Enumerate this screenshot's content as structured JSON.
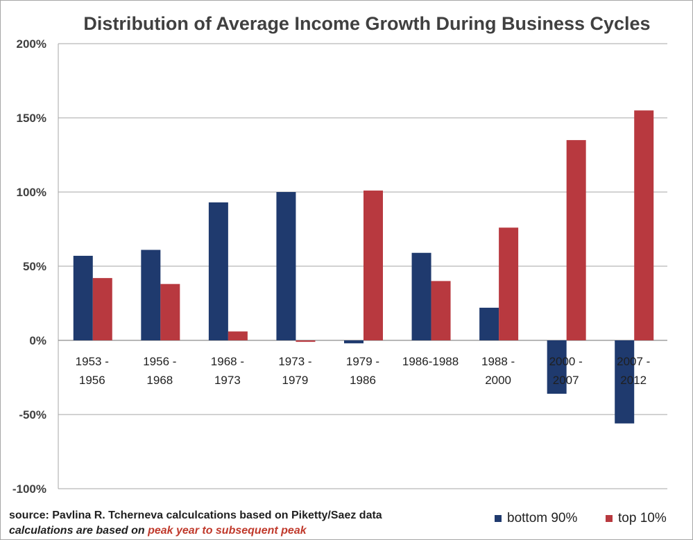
{
  "chart_data": {
    "type": "bar",
    "title": "Distribution of Average Income Growth During Business Cycles",
    "categories": [
      [
        "1953 -",
        "1956"
      ],
      [
        "1956 -",
        "1968"
      ],
      [
        "1968 -",
        "1973"
      ],
      [
        "1973 -",
        "1979"
      ],
      [
        "1979 -",
        "1986"
      ],
      [
        "1986-1988"
      ],
      [
        "1988 -",
        "2000"
      ],
      [
        "2000 -",
        "2007"
      ],
      [
        "2007 -",
        "2012"
      ]
    ],
    "series": [
      {
        "name": "bottom 90%",
        "color": "#1f3a6e",
        "values": [
          57,
          61,
          93,
          100,
          -2,
          59,
          22,
          -36,
          -56
        ]
      },
      {
        "name": "top 10%",
        "color": "#b8393f",
        "values": [
          42,
          38,
          6,
          -1,
          101,
          40,
          76,
          135,
          155
        ]
      }
    ],
    "ylim": [
      -100,
      200
    ],
    "yticks": [
      200,
      150,
      100,
      50,
      0,
      -50,
      -100
    ],
    "ytick_labels": [
      "200%",
      "150%",
      "100%",
      "50%",
      "0%",
      "-50%",
      "-100%"
    ],
    "grid": true,
    "legend_position": "bottom-right",
    "xlabel": "",
    "ylabel": ""
  },
  "source_note": "source: Pavlina R. Tcherneva calculcations based on Piketty/Saez data",
  "calc_note_prefix": "calculations are based on ",
  "calc_note_emphasis": "peak year to subsequent peak"
}
